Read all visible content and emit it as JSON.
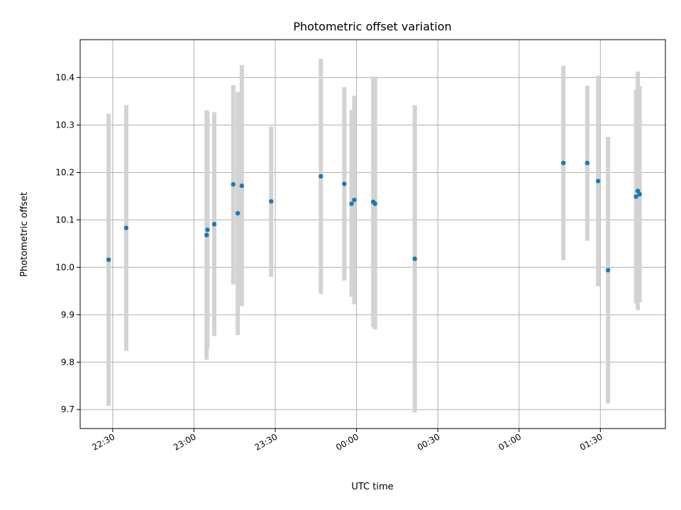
{
  "chart_data": {
    "type": "scatter",
    "title": "Photometric offset variation",
    "xlabel": "UTC time",
    "ylabel": "Photometric offset",
    "xlim": [
      "22:18",
      "01:54"
    ],
    "ylim": [
      9.66,
      10.48
    ],
    "grid": true,
    "x_ticks": [
      "22:30",
      "23:00",
      "23:30",
      "00:00",
      "00:30",
      "01:00",
      "01:30"
    ],
    "y_ticks": [
      "9.7",
      "9.8",
      "9.9",
      "10.0",
      "10.1",
      "10.2",
      "10.3",
      "10.4"
    ],
    "colors": {
      "point": "#1f77b4",
      "errorbar": "#d3d3d3",
      "grid": "#b0b0b0"
    },
    "series": [
      {
        "points": [
          {
            "t": "22:28:30",
            "y": 10.016,
            "lo": 9.708,
            "hi": 10.324
          },
          {
            "t": "22:35:00",
            "y": 10.083,
            "lo": 9.824,
            "hi": 10.342
          },
          {
            "t": "23:04:40",
            "y": 10.068,
            "lo": 9.805,
            "hi": 10.331
          },
          {
            "t": "23:05:00",
            "y": 10.079,
            "lo": 9.83,
            "hi": 10.328
          },
          {
            "t": "23:07:30",
            "y": 10.091,
            "lo": 9.855,
            "hi": 10.327
          },
          {
            "t": "23:14:30",
            "y": 10.175,
            "lo": 9.964,
            "hi": 10.384
          },
          {
            "t": "23:16:10",
            "y": 10.114,
            "lo": 9.857,
            "hi": 10.37
          },
          {
            "t": "23:17:40",
            "y": 10.172,
            "lo": 9.918,
            "hi": 10.426
          },
          {
            "t": "23:28:30",
            "y": 10.139,
            "lo": 9.98,
            "hi": 10.297
          },
          {
            "t": "23:46:50",
            "y": 10.192,
            "lo": 9.944,
            "hi": 10.44
          },
          {
            "t": "23:55:30",
            "y": 10.176,
            "lo": 9.972,
            "hi": 10.38
          },
          {
            "t": "23:58:10",
            "y": 10.134,
            "lo": 9.938,
            "hi": 10.332
          },
          {
            "t": "23:59:10",
            "y": 10.142,
            "lo": 9.922,
            "hi": 10.362
          },
          {
            "t": "00:06:10",
            "y": 10.138,
            "lo": 9.874,
            "hi": 10.402
          },
          {
            "t": "00:06:50",
            "y": 10.134,
            "lo": 9.869,
            "hi": 10.399
          },
          {
            "t": "00:21:30",
            "y": 10.018,
            "lo": 9.694,
            "hi": 10.342
          },
          {
            "t": "01:16:20",
            "y": 10.22,
            "lo": 10.015,
            "hi": 10.425
          },
          {
            "t": "01:25:10",
            "y": 10.22,
            "lo": 10.056,
            "hi": 10.383
          },
          {
            "t": "01:29:10",
            "y": 10.182,
            "lo": 9.96,
            "hi": 10.404
          },
          {
            "t": "01:32:50",
            "y": 9.994,
            "lo": 9.713,
            "hi": 10.275
          },
          {
            "t": "01:43:10",
            "y": 10.149,
            "lo": 9.924,
            "hi": 10.374
          },
          {
            "t": "01:43:50",
            "y": 10.161,
            "lo": 9.91,
            "hi": 10.413
          },
          {
            "t": "01:44:30",
            "y": 10.154,
            "lo": 9.926,
            "hi": 10.382
          }
        ]
      }
    ]
  }
}
